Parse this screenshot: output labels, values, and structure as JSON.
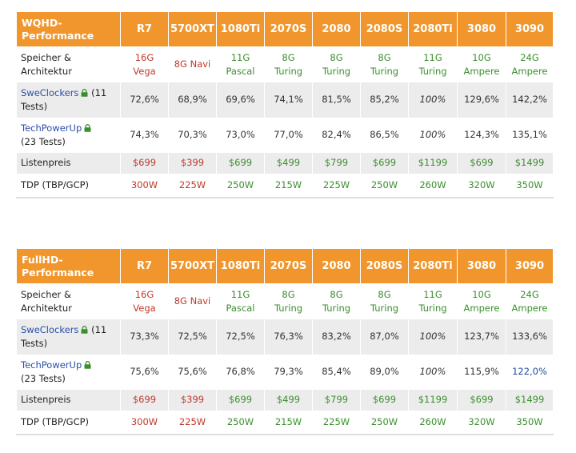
{
  "tables": [
    {
      "title_line1": "WQHD-",
      "title_line2": "Performance",
      "columns": [
        "R7",
        "5700XT",
        "1080Ti",
        "2070S",
        "2080",
        "2080S",
        "2080Ti",
        "3080",
        "3090"
      ],
      "memory": {
        "label_line1": "Speicher &",
        "label_line2": "Architektur",
        "cells": [
          {
            "l1": "16G",
            "l2": "Vega"
          },
          {
            "l1": "8G Navi",
            "l2": ""
          },
          {
            "l1": "11G",
            "l2": "Pascal"
          },
          {
            "l1": "8G",
            "l2": "Turing"
          },
          {
            "l1": "8G",
            "l2": "Turing"
          },
          {
            "l1": "8G",
            "l2": "Turing"
          },
          {
            "l1": "11G",
            "l2": "Turing"
          },
          {
            "l1": "10G",
            "l2": "Ampere"
          },
          {
            "l1": "24G",
            "l2": "Ampere"
          }
        ]
      },
      "swe": {
        "link": "SweClockers",
        "extra": " (11",
        "line2": "Tests)",
        "values": [
          "72,6%",
          "68,9%",
          "69,6%",
          "74,1%",
          "81,5%",
          "85,2%",
          "100%",
          "129,6%",
          "142,2%"
        ]
      },
      "tpu": {
        "link": "TechPowerUp",
        "line2": "(23 Tests)",
        "values": [
          "74,3%",
          "70,3%",
          "73,0%",
          "77,0%",
          "82,4%",
          "86,5%",
          "100%",
          "124,3%",
          "135,1%"
        ]
      },
      "price": {
        "label": "Listenpreis",
        "values": [
          "$699",
          "$399",
          "$699",
          "$499",
          "$799",
          "$699",
          "$1199",
          "$699",
          "$1499"
        ]
      },
      "tdp": {
        "label": "TDP (TBP/GCP)",
        "values": [
          "300W",
          "225W",
          "250W",
          "215W",
          "225W",
          "250W",
          "260W",
          "320W",
          "350W"
        ]
      }
    },
    {
      "title_line1": "FullHD-",
      "title_line2": "Performance",
      "columns": [
        "R7",
        "5700XT",
        "1080Ti",
        "2070S",
        "2080",
        "2080S",
        "2080Ti",
        "3080",
        "3090"
      ],
      "memory": {
        "label_line1": "Speicher &",
        "label_line2": "Architektur",
        "cells": [
          {
            "l1": "16G",
            "l2": "Vega"
          },
          {
            "l1": "8G Navi",
            "l2": ""
          },
          {
            "l1": "11G",
            "l2": "Pascal"
          },
          {
            "l1": "8G",
            "l2": "Turing"
          },
          {
            "l1": "8G",
            "l2": "Turing"
          },
          {
            "l1": "8G",
            "l2": "Turing"
          },
          {
            "l1": "11G",
            "l2": "Turing"
          },
          {
            "l1": "10G",
            "l2": "Ampere"
          },
          {
            "l1": "24G",
            "l2": "Ampere"
          }
        ]
      },
      "swe": {
        "link": "SweClockers",
        "extra": " (11",
        "line2": "Tests)",
        "values": [
          "73,3%",
          "72,5%",
          "72,5%",
          "76,3%",
          "83,2%",
          "87,0%",
          "100%",
          "123,7%",
          "133,6%"
        ]
      },
      "tpu": {
        "link": "TechPowerUp",
        "line2": "(23 Tests)",
        "values": [
          "75,6%",
          "75,6%",
          "76,8%",
          "79,3%",
          "85,4%",
          "89,0%",
          "100%",
          "115,9%",
          "122,0%"
        ]
      },
      "price": {
        "label": "Listenpreis",
        "values": [
          "$699",
          "$399",
          "$699",
          "$499",
          "$799",
          "$699",
          "$1199",
          "$699",
          "$1499"
        ]
      },
      "tdp": {
        "label": "TDP (TBP/GCP)",
        "values": [
          "300W",
          "225W",
          "250W",
          "215W",
          "225W",
          "250W",
          "260W",
          "320W",
          "350W"
        ]
      }
    }
  ],
  "colors": {
    "header": "#f0962c",
    "amd": "#c0392b",
    "nvidia": "#3a8f2d",
    "link": "#2a4fa8",
    "lock": "#3a8f2d"
  },
  "icons": {
    "lock": "lock-icon"
  }
}
